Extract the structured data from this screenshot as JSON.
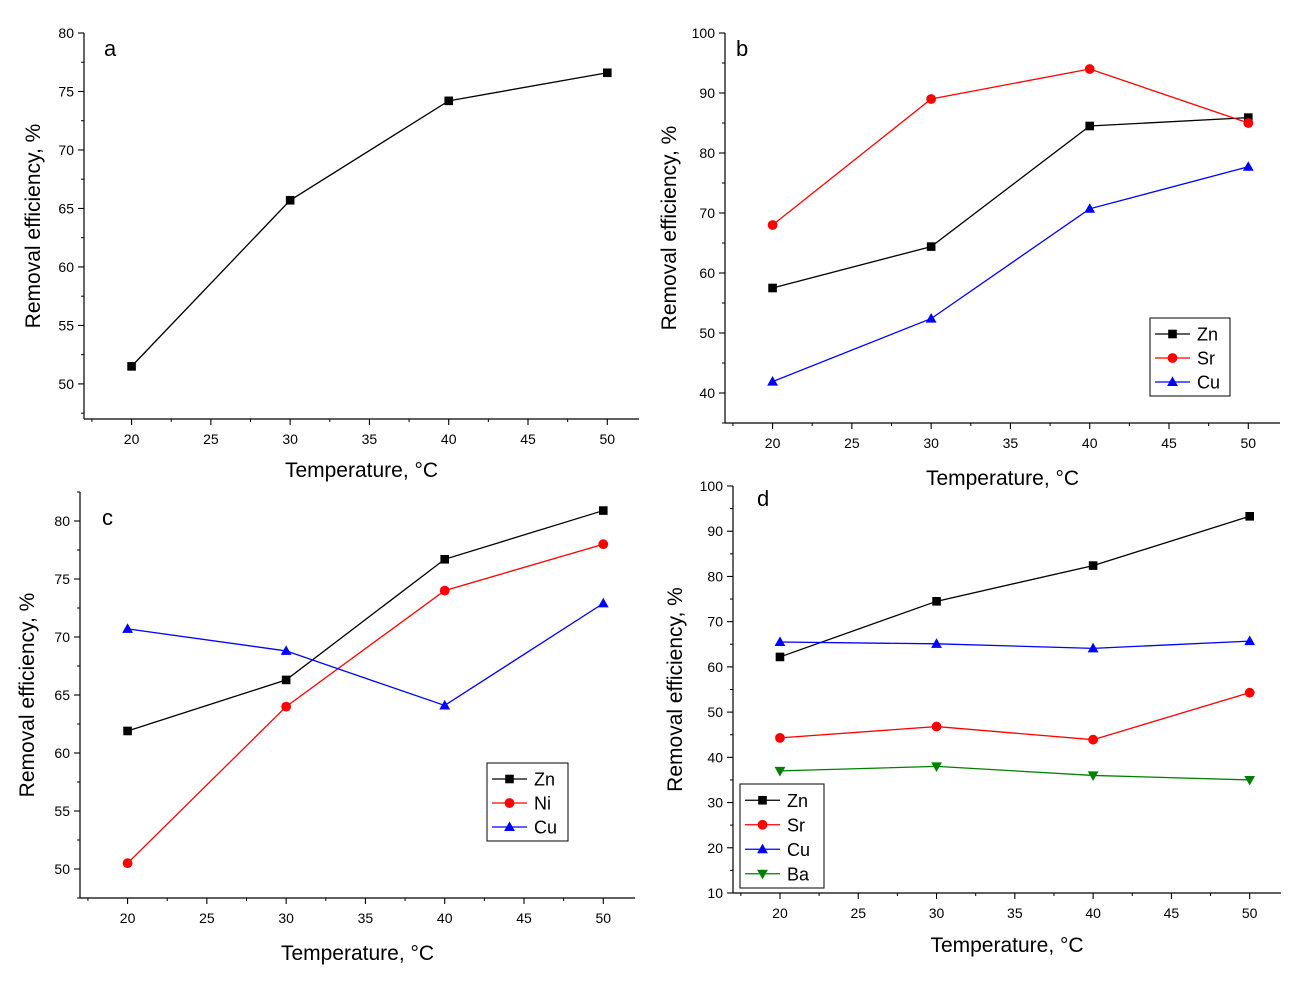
{
  "figure": {
    "description_caption": ""
  },
  "chart_data": [
    {
      "panel": "a",
      "type": "line",
      "title": "",
      "xlabel": "Temperature, °C",
      "ylabel": "Removal efficiency, %",
      "xlim": [
        17,
        52
      ],
      "ylim": [
        47,
        80
      ],
      "xticks": [
        20,
        25,
        30,
        35,
        40,
        45,
        50
      ],
      "yticks": [
        50,
        55,
        60,
        65,
        70,
        75,
        80
      ],
      "legend": null,
      "series": [
        {
          "name": "",
          "color": "#000000",
          "marker": "square",
          "x": [
            20,
            30,
            40,
            50
          ],
          "values": [
            51.5,
            65.7,
            74.2,
            76.6
          ]
        }
      ]
    },
    {
      "panel": "b",
      "type": "line",
      "title": "",
      "xlabel": "Temperature, °C",
      "ylabel": "Removal efficiency, %",
      "xlim": [
        17,
        52
      ],
      "ylim": [
        35,
        100
      ],
      "xticks": [
        20,
        25,
        30,
        35,
        40,
        45,
        50
      ],
      "yticks": [
        40,
        50,
        60,
        70,
        80,
        90,
        100
      ],
      "legend": "bottom-right",
      "series": [
        {
          "name": "Zn",
          "color": "#000000",
          "marker": "square",
          "x": [
            20,
            30,
            40,
            50
          ],
          "values": [
            57.5,
            64.4,
            84.5,
            85.9
          ]
        },
        {
          "name": "Sr",
          "color": "#ff0000",
          "marker": "circle",
          "x": [
            20,
            30,
            40,
            50
          ],
          "values": [
            68.0,
            89.0,
            94.0,
            85.0
          ]
        },
        {
          "name": "Cu",
          "color": "#0000ff",
          "marker": "triangle-up",
          "x": [
            20,
            30,
            40,
            50
          ],
          "values": [
            41.9,
            52.4,
            70.7,
            77.7
          ]
        }
      ]
    },
    {
      "panel": "c",
      "type": "line",
      "title": "",
      "xlabel": "Temperature, °C",
      "ylabel": "Removal efficiency, %",
      "xlim": [
        17,
        52
      ],
      "ylim": [
        47.5,
        82.5
      ],
      "xticks": [
        20,
        25,
        30,
        35,
        40,
        45,
        50
      ],
      "yticks": [
        50,
        55,
        60,
        65,
        70,
        75,
        80
      ],
      "legend": "bottom-right",
      "series": [
        {
          "name": "Zn",
          "color": "#000000",
          "marker": "square",
          "x": [
            20,
            30,
            40,
            50
          ],
          "values": [
            61.9,
            66.3,
            76.7,
            80.9
          ]
        },
        {
          "name": "Ni",
          "color": "#ff0000",
          "marker": "circle",
          "x": [
            20,
            30,
            40,
            50
          ],
          "values": [
            50.5,
            64.0,
            74.0,
            78.0
          ]
        },
        {
          "name": "Cu",
          "color": "#0000ff",
          "marker": "triangle-up",
          "x": [
            20,
            30,
            40,
            50
          ],
          "values": [
            70.7,
            68.8,
            64.1,
            72.9
          ]
        }
      ]
    },
    {
      "panel": "d",
      "type": "line",
      "title": "",
      "xlabel": "Temperature, °C",
      "ylabel": "Removal efficiency, %",
      "xlim": [
        17,
        52
      ],
      "ylim": [
        10,
        100
      ],
      "xticks": [
        20,
        25,
        30,
        35,
        40,
        45,
        50
      ],
      "yticks": [
        10,
        20,
        30,
        40,
        50,
        60,
        70,
        80,
        90,
        100
      ],
      "legend": "bottom-left",
      "series": [
        {
          "name": "Zn",
          "color": "#000000",
          "marker": "square",
          "x": [
            20,
            30,
            40,
            50
          ],
          "values": [
            62.2,
            74.5,
            82.4,
            93.3
          ]
        },
        {
          "name": "Sr",
          "color": "#ff0000",
          "marker": "circle",
          "x": [
            20,
            30,
            40,
            50
          ],
          "values": [
            44.3,
            46.8,
            43.9,
            54.3
          ]
        },
        {
          "name": "Cu",
          "color": "#0000ff",
          "marker": "triangle-up",
          "x": [
            20,
            30,
            40,
            50
          ],
          "values": [
            65.5,
            65.1,
            64.1,
            65.7
          ]
        },
        {
          "name": "Ba",
          "color": "#008000",
          "marker": "triangle-down",
          "x": [
            20,
            30,
            40,
            50
          ],
          "values": [
            37.0,
            38.0,
            36.0,
            35.0
          ]
        }
      ]
    }
  ]
}
